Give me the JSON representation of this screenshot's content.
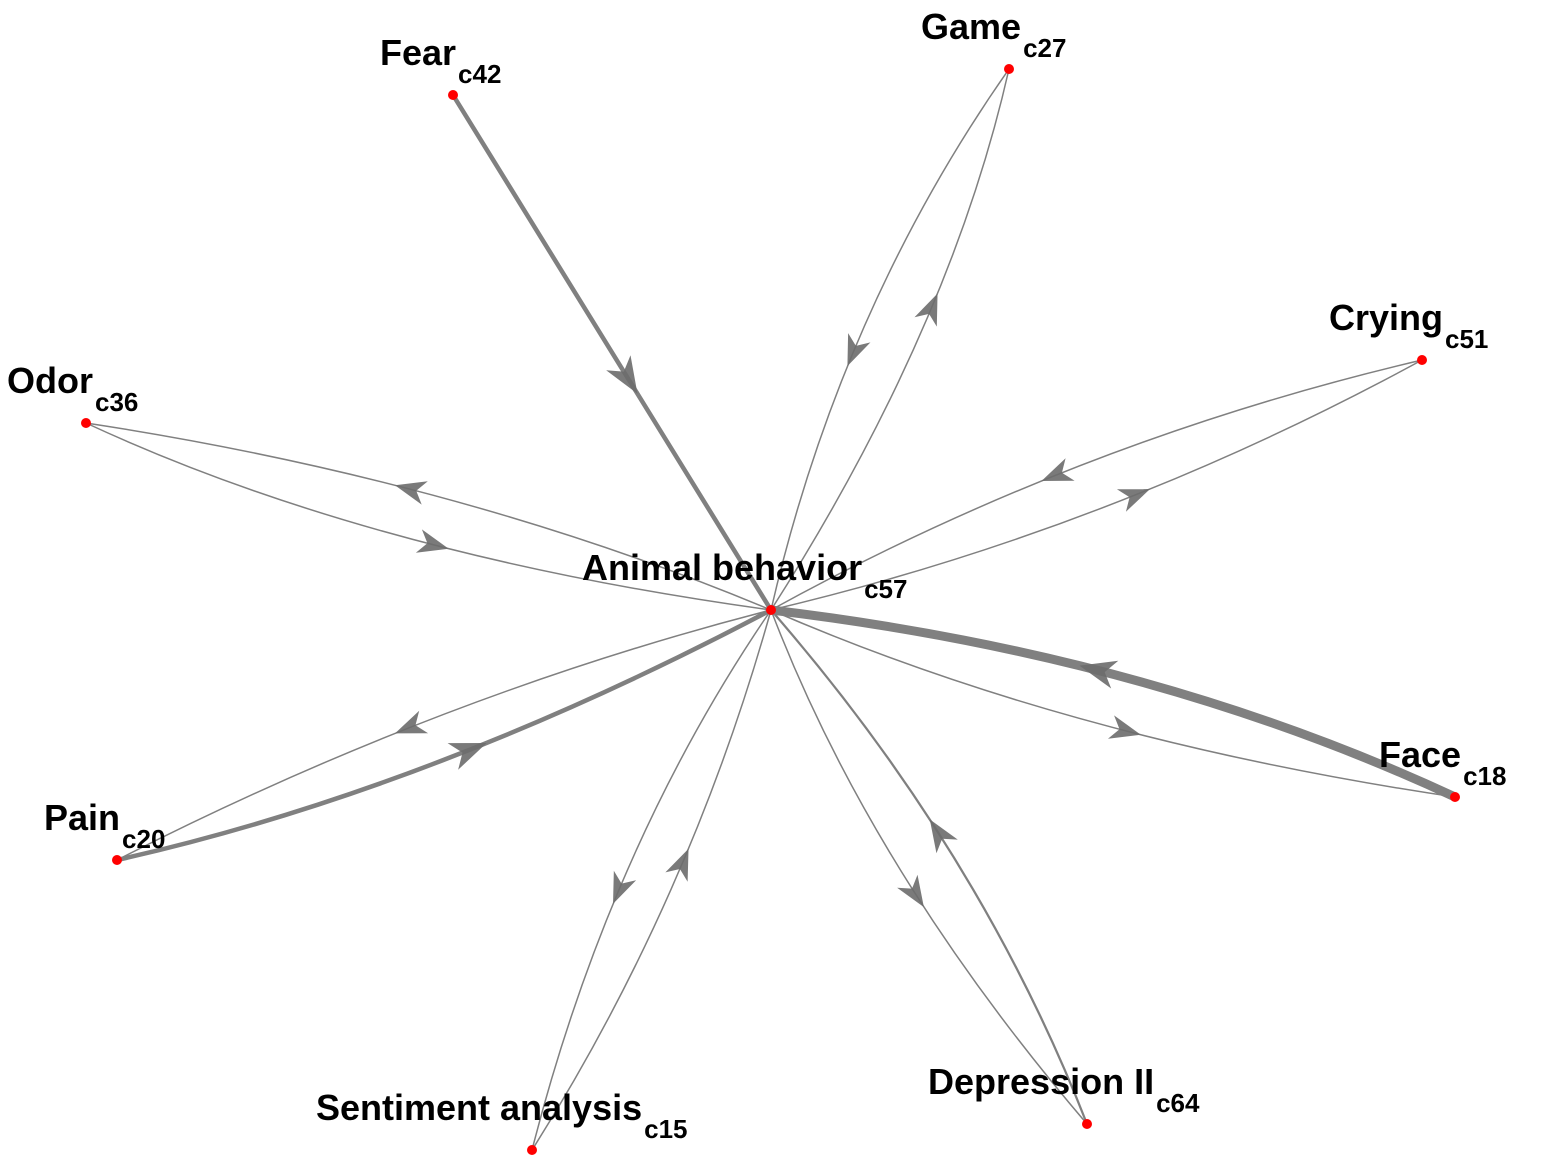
{
  "graph": {
    "node_color": "#ff0000",
    "edge_color": "#808080",
    "center": {
      "id": "c57",
      "name": "Animal behavior",
      "code": "c57"
    },
    "nodes": [
      {
        "id": "c42",
        "name": "Fear",
        "code": "c42"
      },
      {
        "id": "c27",
        "name": "Game",
        "code": "c27"
      },
      {
        "id": "c51",
        "name": "Crying",
        "code": "c51"
      },
      {
        "id": "c36",
        "name": "Odor",
        "code": "c36"
      },
      {
        "id": "c18",
        "name": "Face",
        "code": "c18"
      },
      {
        "id": "c20",
        "name": "Pain",
        "code": "c20"
      },
      {
        "id": "c15",
        "name": "Sentiment analysis",
        "code": "c15"
      },
      {
        "id": "c64",
        "name": "Depression II",
        "code": "c64"
      }
    ],
    "edges": [
      {
        "from": "c42",
        "to": "c57",
        "weight": 3
      },
      {
        "from": "c27",
        "to": "c57",
        "weight": 1
      },
      {
        "from": "c57",
        "to": "c27",
        "weight": 1
      },
      {
        "from": "c51",
        "to": "c57",
        "weight": 1
      },
      {
        "from": "c57",
        "to": "c51",
        "weight": 1
      },
      {
        "from": "c57",
        "to": "c36",
        "weight": 1
      },
      {
        "from": "c36",
        "to": "c57",
        "weight": 1
      },
      {
        "from": "c18",
        "to": "c57",
        "weight": 6
      },
      {
        "from": "c57",
        "to": "c18",
        "weight": 1
      },
      {
        "from": "c57",
        "to": "c20",
        "weight": 1
      },
      {
        "from": "c20",
        "to": "c57",
        "weight": 3
      },
      {
        "from": "c57",
        "to": "c15",
        "weight": 1
      },
      {
        "from": "c15",
        "to": "c57",
        "weight": 1
      },
      {
        "from": "c57",
        "to": "c64",
        "weight": 1
      },
      {
        "from": "c64",
        "to": "c57",
        "weight": 1.5
      }
    ]
  }
}
